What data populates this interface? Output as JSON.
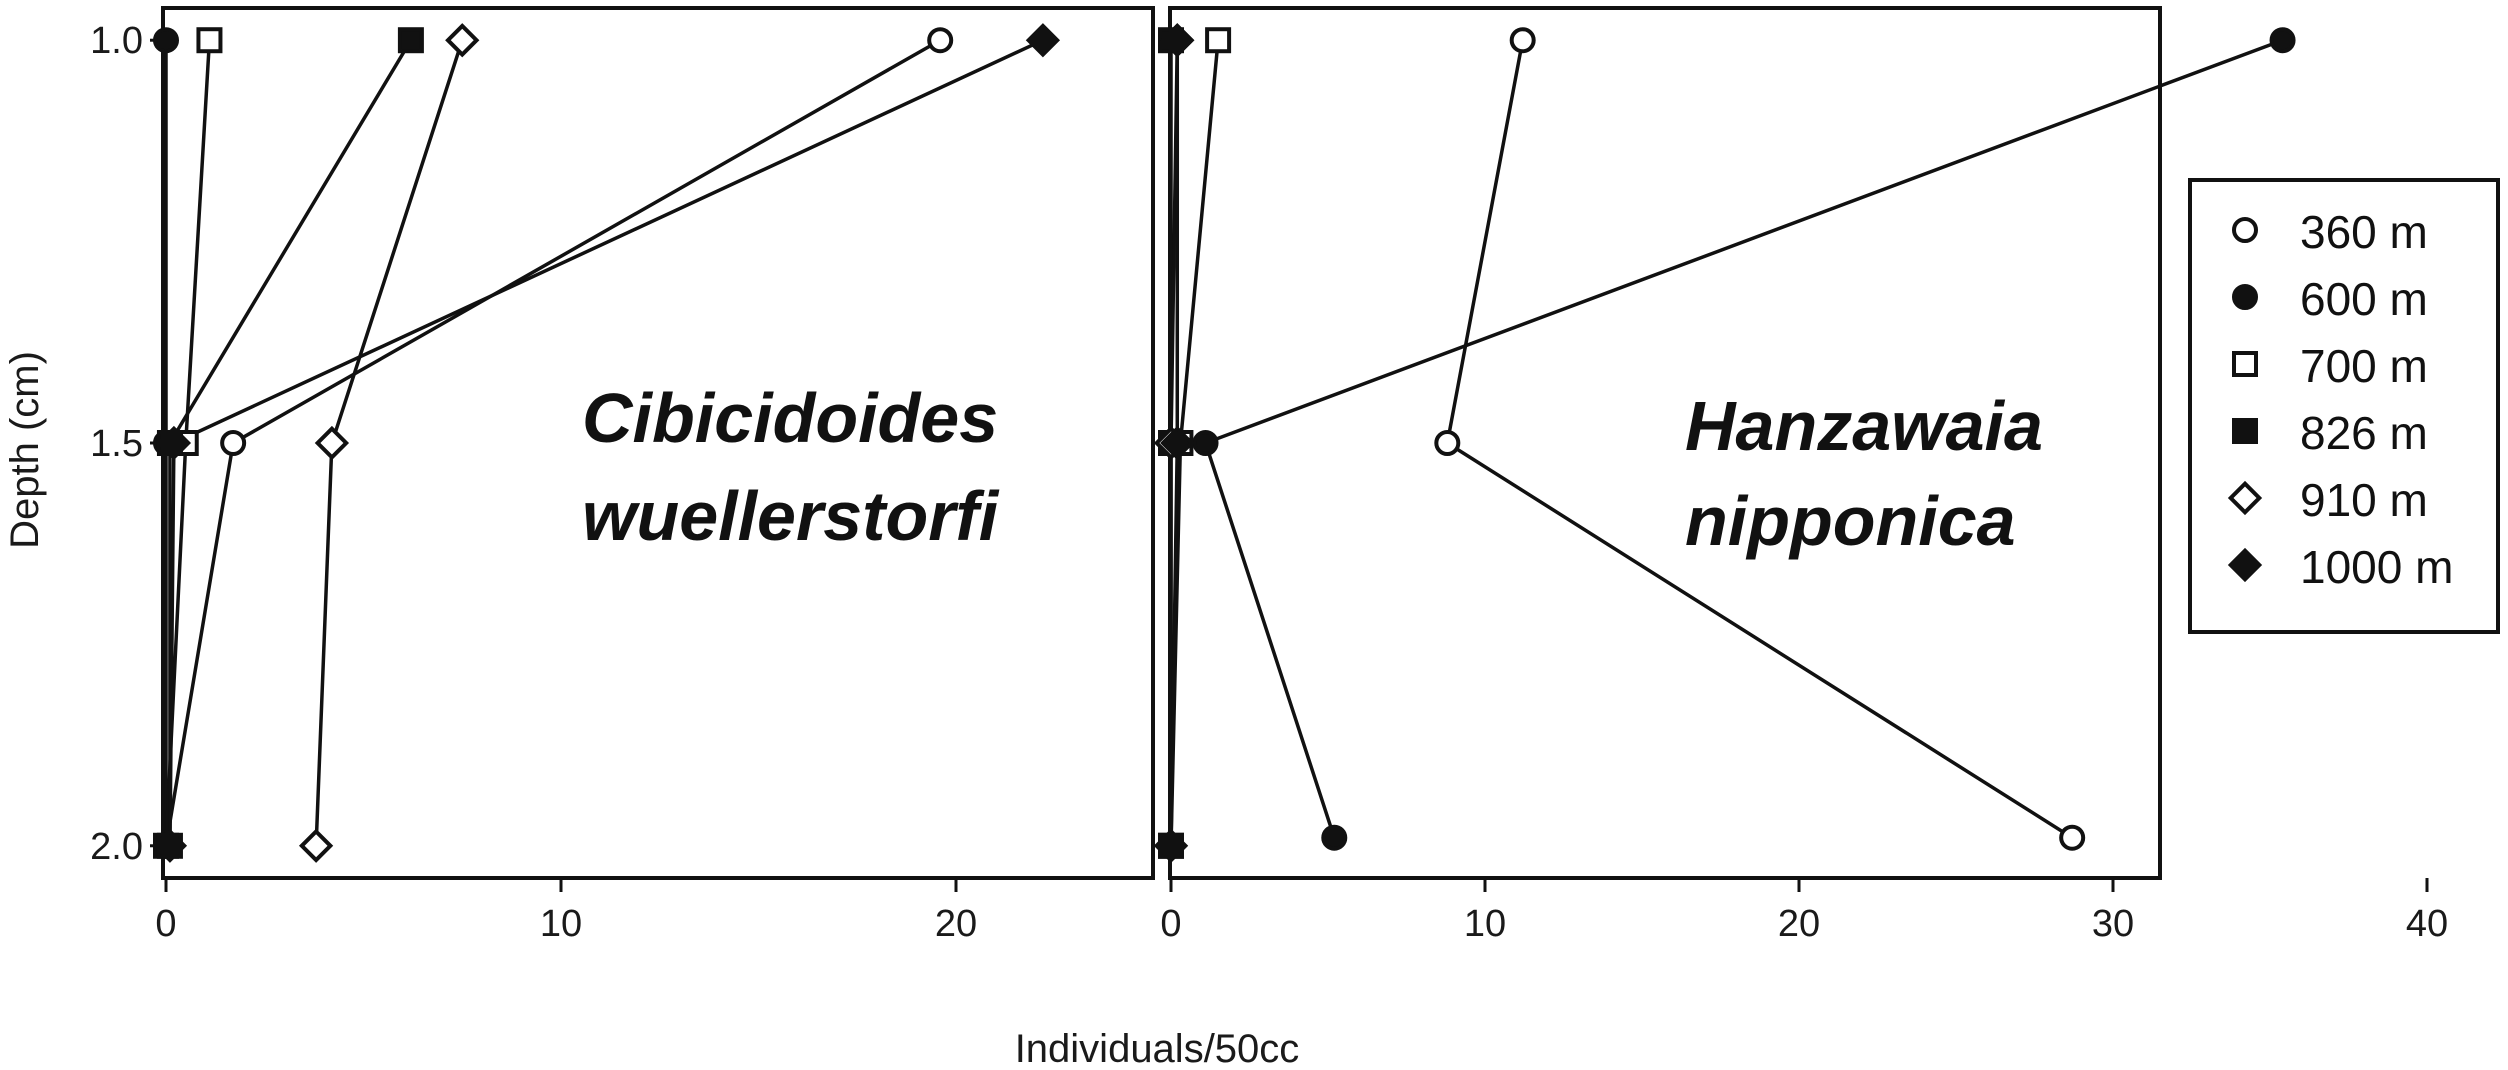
{
  "chart_data": {
    "type": "line",
    "ylabel": "Depth (cm)",
    "xlabel": "Individuals/50cc",
    "y_ticks": [
      "1.0",
      "1.5",
      "2.0"
    ],
    "y_tick_values": [
      1.0,
      1.5,
      2.0
    ],
    "ylim": [
      0.96,
      2.04
    ],
    "y_inverted": true,
    "legend": {
      "placement": "right",
      "entries": [
        {
          "label": "360 m",
          "marker": "circle",
          "fill": "#ffffff"
        },
        {
          "label": "600 m",
          "marker": "circle",
          "fill": "#111111"
        },
        {
          "label": "700 m",
          "marker": "square",
          "fill": "#ffffff"
        },
        {
          "label": "826 m",
          "marker": "square",
          "fill": "#111111"
        },
        {
          "label": "910 m",
          "marker": "diamond",
          "fill": "#ffffff"
        },
        {
          "label": "1000 m",
          "marker": "diamond",
          "fill": "#111111"
        }
      ]
    },
    "panels": [
      {
        "species_line1": "Cibicidoides",
        "species_line2": "wuellerstorfi",
        "x_ticks": [
          "0",
          "10",
          "20"
        ],
        "x_tick_values": [
          0,
          10,
          20
        ],
        "xlim": [
          0,
          25
        ],
        "series": [
          {
            "marker": "circle",
            "fill": "#ffffff",
            "points": [
              [
                19.6,
                1.0
              ],
              [
                1.7,
                1.5
              ],
              [
                0,
                2.0
              ]
            ]
          },
          {
            "marker": "circle",
            "fill": "#111111",
            "points": [
              [
                0,
                1.0
              ],
              [
                0,
                1.5
              ],
              [
                0,
                2.0
              ]
            ]
          },
          {
            "marker": "square",
            "fill": "#ffffff",
            "points": [
              [
                1.1,
                1.0
              ],
              [
                0.5,
                1.5
              ],
              [
                0,
                2.0
              ]
            ]
          },
          {
            "marker": "square",
            "fill": "#111111",
            "points": [
              [
                6.2,
                1.0
              ],
              [
                0.1,
                1.5
              ],
              [
                0.1,
                2.0
              ]
            ]
          },
          {
            "marker": "diamond",
            "fill": "#ffffff",
            "points": [
              [
                7.5,
                1.0
              ],
              [
                4.2,
                1.5
              ],
              [
                3.8,
                2.0
              ]
            ]
          },
          {
            "marker": "diamond",
            "fill": "#111111",
            "points": [
              [
                22.2,
                1.0
              ],
              [
                0.2,
                1.5
              ],
              [
                0.1,
                2.0
              ]
            ]
          }
        ]
      },
      {
        "species_line1": "Hanzawaia",
        "species_line2": "nipponica",
        "x_ticks": [
          "0",
          "10",
          "20",
          "30",
          "40"
        ],
        "x_tick_values": [
          0,
          10,
          20,
          30,
          40
        ],
        "xlim": [
          0,
          40
        ],
        "series": [
          {
            "marker": "circle",
            "fill": "#ffffff",
            "points": [
              [
                11.2,
                1.0
              ],
              [
                8.8,
                1.5
              ],
              [
                28.7,
                1.99
              ]
            ]
          },
          {
            "marker": "circle",
            "fill": "#111111",
            "points": [
              [
                35.4,
                1.0
              ],
              [
                1.1,
                1.5
              ],
              [
                5.2,
                1.99
              ]
            ]
          },
          {
            "marker": "square",
            "fill": "#ffffff",
            "points": [
              [
                1.5,
                1.0
              ],
              [
                0.3,
                1.5
              ],
              [
                0,
                2.0
              ]
            ]
          },
          {
            "marker": "square",
            "fill": "#111111",
            "points": [
              [
                0,
                1.0
              ],
              [
                0,
                1.5
              ],
              [
                0,
                2.0
              ]
            ]
          },
          {
            "marker": "diamond",
            "fill": "#ffffff",
            "points": [
              [
                0.2,
                1.0
              ],
              [
                0,
                1.5
              ],
              [
                0,
                2.0
              ]
            ]
          },
          {
            "marker": "diamond",
            "fill": "#111111",
            "points": [
              [
                0.2,
                1.0
              ],
              [
                0.2,
                1.5
              ],
              [
                0,
                2.0
              ]
            ]
          }
        ]
      }
    ]
  }
}
